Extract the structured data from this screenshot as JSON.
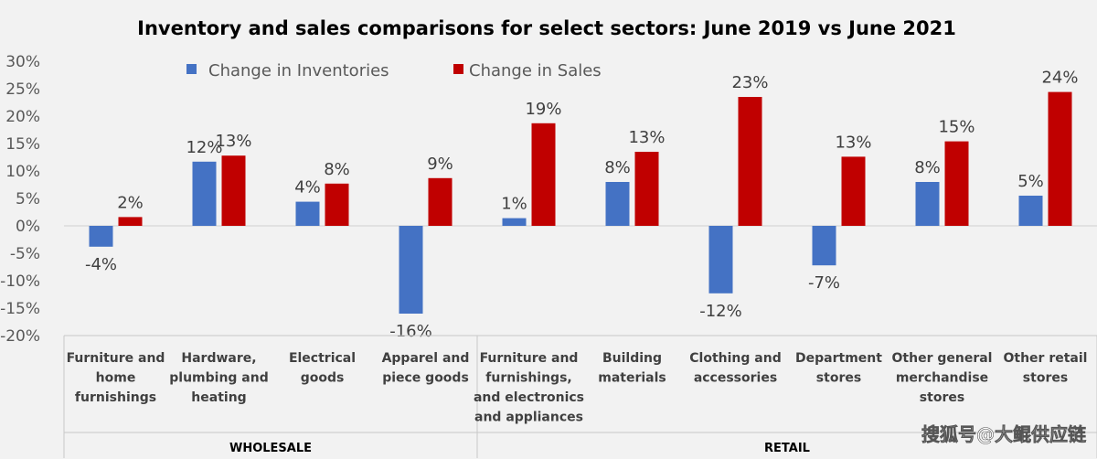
{
  "chart_data": {
    "type": "bar",
    "title": "Inventory and sales comparisons for select sectors: June 2019 vs June 2021",
    "xlabel": "",
    "ylabel": "",
    "ylim": [
      -20,
      30
    ],
    "y_ticks": [
      "30%",
      "25%",
      "20%",
      "15%",
      "10%",
      "5%",
      "0%",
      "-5%",
      "-10%",
      "-15%",
      "-20%"
    ],
    "y_tick_values": [
      30,
      25,
      20,
      15,
      10,
      5,
      0,
      -5,
      -10,
      -15,
      -20
    ],
    "legend_position": "top-center",
    "grid": false,
    "categories": [
      [
        "Furniture and",
        "home",
        "furnishings"
      ],
      [
        "Hardware,",
        "plumbing and",
        "heating"
      ],
      [
        "Electrical",
        "goods"
      ],
      [
        "Apparel and",
        "piece goods"
      ],
      [
        "Furniture and",
        "furnishings,",
        "and electronics",
        "and appliances"
      ],
      [
        "Building",
        "materials"
      ],
      [
        "Clothing and",
        "accessories"
      ],
      [
        "Department",
        "stores"
      ],
      [
        "Other general",
        "merchandise",
        "stores"
      ],
      [
        "Other retail",
        "stores"
      ]
    ],
    "groups": [
      {
        "name": "WHOLESALE",
        "start": 0,
        "end": 3
      },
      {
        "name": "RETAIL",
        "start": 4,
        "end": 9
      }
    ],
    "series": [
      {
        "name": "Change in Inventories",
        "color": "#4472c4",
        "values": [
          -3.8,
          11.7,
          4.4,
          -16.0,
          1.4,
          8.0,
          -12.3,
          -7.2,
          8.0,
          5.5
        ],
        "labels": [
          "-4%",
          "12%",
          "4%",
          "-16%",
          "1%",
          "8%",
          "-12%",
          "-7%",
          "8%",
          "5%"
        ]
      },
      {
        "name": "Change in Sales",
        "color": "#c00000",
        "values": [
          1.6,
          12.8,
          7.7,
          8.7,
          18.7,
          13.5,
          23.5,
          12.6,
          15.4,
          24.4
        ],
        "labels": [
          "2%",
          "13%",
          "8%",
          "9%",
          "19%",
          "13%",
          "23%",
          "13%",
          "15%",
          "24%"
        ]
      }
    ]
  },
  "watermark": "搜狐号@大鲲供应链"
}
